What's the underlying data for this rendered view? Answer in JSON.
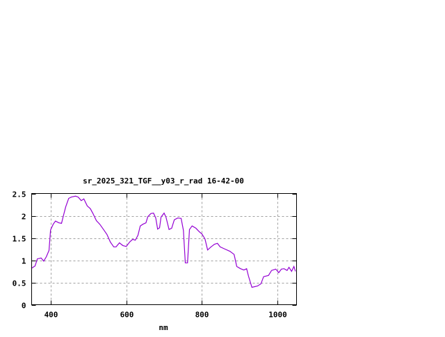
{
  "chart_data": {
    "type": "line",
    "title": "sr_2025_321_TGF__y03_r_rad 16-42-00",
    "xlabel": "nm",
    "ylabel": "",
    "xlim": [
      350,
      1050
    ],
    "ylim": [
      0,
      2.5
    ],
    "grid": true,
    "xticks": [
      400,
      600,
      800,
      1000
    ],
    "xtick_labels": [
      "400",
      "600",
      "800",
      "1000"
    ],
    "yticks": [
      0,
      0.5,
      1,
      1.5,
      2,
      2.5
    ],
    "ytick_labels": [
      "0",
      "0.5",
      "1",
      "1.5",
      "2",
      "2.5"
    ],
    "line_color": "#9400d3",
    "series": [
      {
        "x": [
          350,
          359,
          365,
          375,
          382,
          389,
          396,
          400,
          407,
          413,
          422,
          429,
          433,
          440,
          448,
          455,
          466,
          473,
          481,
          488,
          497,
          505,
          512,
          521,
          530,
          540,
          549,
          558,
          567,
          573,
          582,
          591,
          600,
          609,
          617,
          624,
          631,
          637,
          644,
          652,
          657,
          665,
          672,
          678,
          683,
          688,
          692,
          700,
          705,
          713,
          720,
          727,
          736,
          745,
          751,
          756,
          762,
          767,
          774,
          784,
          793,
          800,
          808,
          815,
          824,
          833,
          841,
          848,
          861,
          874,
          885,
          892,
          902,
          911,
          918,
          923,
          932,
          947,
          956,
          963,
          976,
          984,
          995,
          1003,
          1010,
          1017,
          1025,
          1030,
          1037,
          1043,
          1047
        ],
        "y": [
          0.82,
          0.87,
          1.03,
          1.05,
          0.98,
          1.08,
          1.22,
          1.68,
          1.81,
          1.88,
          1.84,
          1.83,
          1.97,
          2.2,
          2.39,
          2.42,
          2.44,
          2.42,
          2.34,
          2.38,
          2.22,
          2.16,
          2.05,
          1.89,
          1.81,
          1.69,
          1.58,
          1.41,
          1.3,
          1.3,
          1.39,
          1.33,
          1.31,
          1.41,
          1.47,
          1.45,
          1.56,
          1.77,
          1.81,
          1.84,
          1.98,
          2.05,
          2.06,
          1.95,
          1.7,
          1.73,
          1.97,
          2.06,
          1.97,
          1.69,
          1.72,
          1.91,
          1.95,
          1.94,
          1.67,
          0.94,
          0.94,
          1.69,
          1.77,
          1.72,
          1.64,
          1.59,
          1.48,
          1.23,
          1.3,
          1.36,
          1.38,
          1.3,
          1.25,
          1.2,
          1.13,
          0.86,
          0.81,
          0.78,
          0.81,
          0.64,
          0.39,
          0.42,
          0.47,
          0.63,
          0.66,
          0.77,
          0.8,
          0.72,
          0.8,
          0.81,
          0.77,
          0.84,
          0.75,
          0.86,
          0.75
        ]
      }
    ]
  }
}
